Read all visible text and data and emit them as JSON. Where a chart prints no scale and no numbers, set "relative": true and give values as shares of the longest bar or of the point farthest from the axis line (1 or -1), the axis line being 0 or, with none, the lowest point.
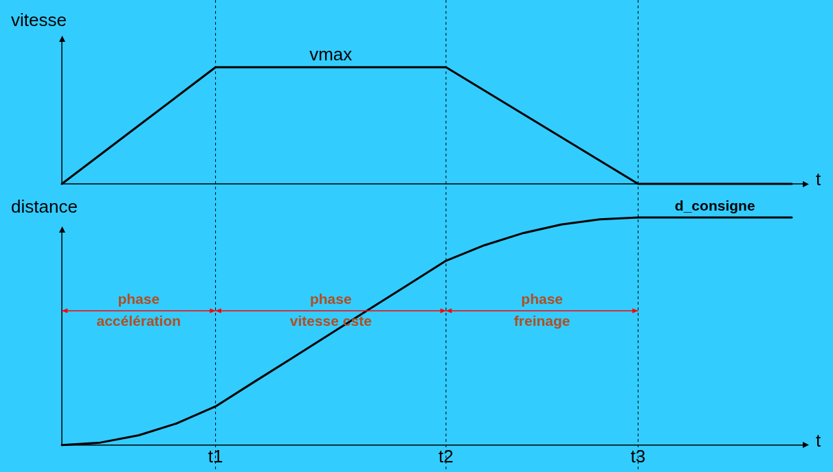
{
  "chart_data": [
    {
      "type": "line",
      "ylabel": "vitesse",
      "xlabel": "t",
      "relative": true,
      "marker": "none",
      "categories": [
        null,
        null,
        null,
        null,
        null,
        null,
        null,
        null,
        null,
        null,
        null,
        null,
        null,
        null,
        null,
        null,
        null,
        null,
        null,
        null
      ],
      "series": [
        {
          "color": "#000000",
          "values": [
            0,
            0.25,
            0.5,
            0.75,
            1,
            1,
            1,
            1,
            1,
            1,
            1,
            0.8,
            0.6,
            0.4,
            0.2,
            0,
            0,
            0,
            0,
            0
          ]
        }
      ],
      "annotations": [
        "vmax"
      ]
    },
    {
      "type": "line",
      "ylabel": "distance",
      "xlabel": "t",
      "relative": true,
      "marker": "none",
      "categories": [
        null,
        null,
        null,
        null,
        "t1",
        null,
        null,
        null,
        null,
        null,
        "t2",
        null,
        null,
        null,
        null,
        "t3",
        null,
        null,
        null,
        null
      ],
      "series": [
        {
          "color": "#000000",
          "values": [
            0,
            0.011,
            0.043,
            0.096,
            0.17,
            0.277,
            0.383,
            0.49,
            0.597,
            0.703,
            0.81,
            0.878,
            0.931,
            0.969,
            0.992,
            1,
            1,
            1,
            1,
            1
          ]
        }
      ],
      "ref_lines": [
        {
          "axis": "x",
          "value": "t1",
          "color": "#000000",
          "line_style": "dashed"
        },
        {
          "axis": "x",
          "value": "t2",
          "color": "#000000",
          "line_style": "dashed"
        },
        {
          "axis": "x",
          "value": "t3",
          "color": "#000000",
          "line_style": "dashed"
        }
      ],
      "annotations": [
        "phase accélération",
        "phase vitesse cste",
        "phase freinage",
        "d_consigne"
      ]
    }
  ]
}
